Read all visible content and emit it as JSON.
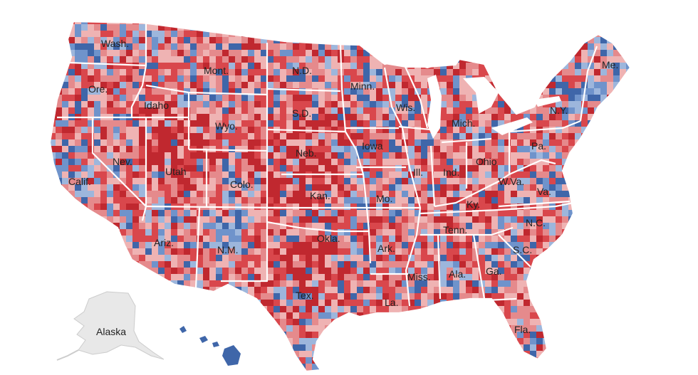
{
  "map": {
    "colors": {
      "strong_red": "#c0282f",
      "medium_red": "#d9474c",
      "light_red": "#e58a8c",
      "pale_red": "#efb3b3",
      "light_blue": "#9db6dc",
      "medium_blue": "#6f93cb",
      "strong_blue": "#3f66a9",
      "alaska": "#e8e8e8",
      "border": "#ffffff"
    },
    "labels": {
      "wash": "Wash.",
      "ore": "Ore.",
      "idaho": "Idaho",
      "mont": "Mont.",
      "wyo": "Wyo.",
      "nd": "N.D.",
      "sd": "S.D.",
      "neb": "Neb.",
      "kan": "Kan.",
      "okla": "Okla.",
      "tex": "Tex.",
      "nm": "N.M.",
      "ariz": "Ariz.",
      "colo": "Colo.",
      "utah": "Utah",
      "nev": "Nev.",
      "calif": "Calif.",
      "minn": "Minn.",
      "iowa": "Iowa",
      "mo": "Mo.",
      "ark": "Ark.",
      "la": "La.",
      "wis": "Wis.",
      "ill": "Ill.",
      "mich": "Mich.",
      "ind": "Ind.",
      "ohio": "Ohio",
      "ky": "Ky.",
      "tenn": "Tenn.",
      "miss": "Miss.",
      "ala": "Ala.",
      "ga": "Ga.",
      "fla": "Fla.",
      "sc": "S.C.",
      "nc": "N.C.",
      "va": "Va.",
      "wva": "W.Va.",
      "pa": "Pa.",
      "ny": "N.Y.",
      "me": "Me.",
      "alaska": "Alaska"
    }
  }
}
